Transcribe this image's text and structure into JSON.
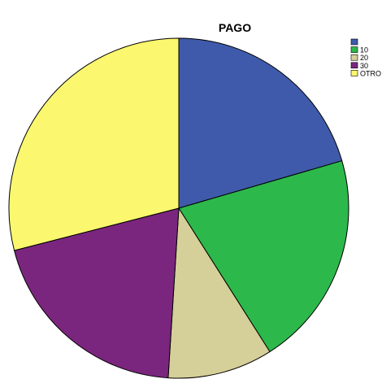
{
  "chart_data": {
    "type": "pie",
    "title": "PAGO",
    "start_angle_deg": 0,
    "direction": "clockwise",
    "slices": [
      {
        "label": "",
        "value": 20.5,
        "color": "#3f5aaa"
      },
      {
        "label": "10",
        "value": 20.5,
        "color": "#2db84b"
      },
      {
        "label": "20",
        "value": 10.0,
        "color": "#d5cf99"
      },
      {
        "label": "30",
        "value": 20.0,
        "color": "#7b267e"
      },
      {
        "label": "OTRO",
        "value": 29.0,
        "color": "#fbf76e"
      }
    ],
    "legend_position": "top-right"
  }
}
